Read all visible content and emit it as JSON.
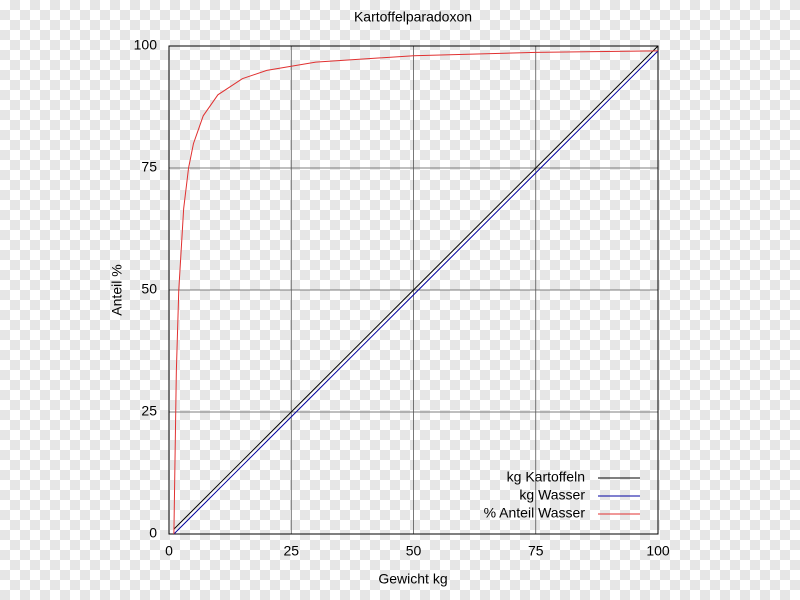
{
  "chart_data": {
    "type": "line",
    "title": "Kartoffelparadoxon",
    "x_label": "Gewicht kg",
    "y_label": "Anteil %",
    "x": [
      1,
      1.5,
      2,
      3,
      4,
      5,
      7,
      10,
      15,
      20,
      30,
      50,
      75,
      100
    ],
    "series": [
      {
        "name": "kg Kartoffeln",
        "color": "#000000",
        "values": [
          1,
          1.5,
          2,
          3,
          4,
          5,
          7,
          10,
          15,
          20,
          30,
          50,
          75,
          100
        ]
      },
      {
        "name": "kg Wasser",
        "color": "#0000a0",
        "values": [
          0,
          0.5,
          1,
          2,
          3,
          4,
          6,
          9,
          14,
          19,
          29,
          49,
          74,
          99
        ]
      },
      {
        "name": "% Anteil Wasser",
        "color": "#e03030",
        "values": [
          0,
          33.3,
          50,
          66.7,
          75,
          80,
          85.7,
          90,
          93.3,
          95,
          96.7,
          98,
          98.7,
          99
        ]
      }
    ],
    "xlim": [
      0,
      100
    ],
    "xticks": [
      0,
      25,
      50,
      75,
      100
    ],
    "ylim": [
      0,
      100
    ],
    "yticks": [
      0,
      25,
      50,
      75,
      100
    ],
    "grid": true,
    "legend": "lower right"
  }
}
